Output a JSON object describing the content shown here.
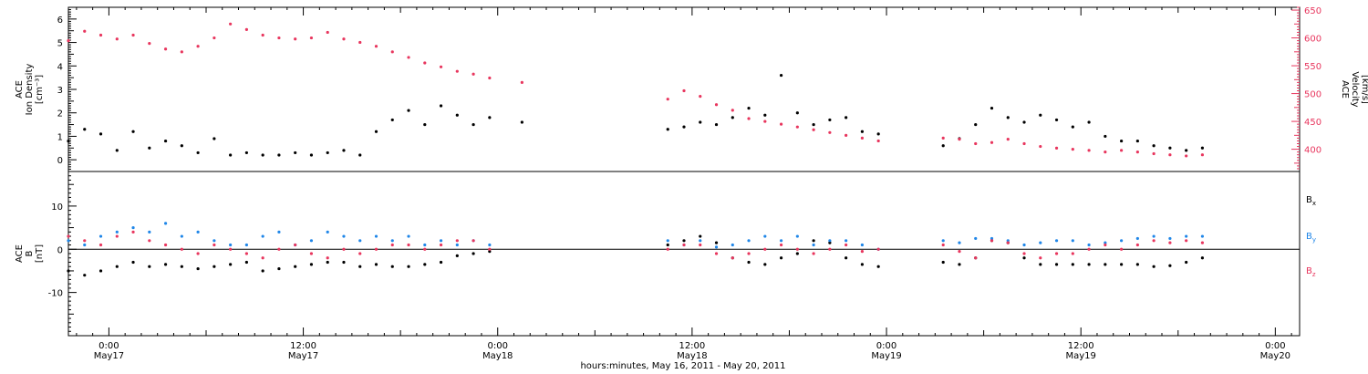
{
  "figure": {
    "xlabel": "hours:minutes, May 16, 2011 - May 20, 2011",
    "x_ticks": [
      {
        "hour": 24,
        "time": "0:00",
        "date": "May17"
      },
      {
        "hour": 36,
        "time": "12:00",
        "date": "May17"
      },
      {
        "hour": 48,
        "time": "0:00",
        "date": "May18"
      },
      {
        "hour": 60,
        "time": "12:00",
        "date": "May18"
      },
      {
        "hour": 72,
        "time": "0:00",
        "date": "May19"
      },
      {
        "hour": 84,
        "time": "12:00",
        "date": "May19"
      },
      {
        "hour": 96,
        "time": "0:00",
        "date": "May20"
      }
    ],
    "colors": {
      "black": "#000000",
      "pink": "#e8365e",
      "blue": "#1f86e8",
      "axis_right": "#e8365e"
    }
  },
  "chart_data": [
    {
      "type": "scatter",
      "xlim_hours": [
        21.5,
        97.5
      ],
      "left_axis": {
        "title_lines": [
          "ACE",
          "Ion Density",
          "[cm⁻³]"
        ],
        "ylim": [
          -0.5,
          6.5
        ],
        "ticks": [
          0,
          1,
          2,
          3,
          4,
          5,
          6
        ]
      },
      "right_axis": {
        "title_lines": [
          "ACE",
          "Velocity",
          "[km/s]"
        ],
        "ylim": [
          360,
          655
        ],
        "ticks": [
          400,
          450,
          500,
          550,
          600,
          650
        ]
      },
      "series": [
        {
          "axis": "left",
          "color": "#000000",
          "x": [
            21.5,
            22.5,
            23.5,
            24.5,
            25.5,
            26.5,
            27.5,
            28.5,
            29.5,
            30.5,
            31.5,
            32.5,
            33.5,
            34.5,
            35.5,
            36.5,
            37.5,
            38.5,
            39.5,
            40.5,
            41.5,
            42.5,
            43.5,
            44.5,
            45.5,
            46.5,
            47.5,
            49.5,
            58.5,
            59.5,
            60.5,
            61.5,
            62.5,
            63.5,
            64.5,
            65.5,
            66.5,
            67.5,
            68.5,
            69.5,
            70.5,
            71.5,
            75.5,
            76.5,
            77.5,
            78.5,
            79.5,
            80.5,
            81.5,
            82.5,
            83.5,
            84.5,
            85.5,
            86.5,
            87.5,
            88.5,
            89.5,
            90.5,
            91.5
          ],
          "y": [
            0.8,
            1.3,
            1.1,
            0.4,
            1.2,
            0.5,
            0.8,
            0.6,
            0.3,
            0.9,
            0.2,
            0.3,
            0.2,
            0.2,
            0.3,
            0.2,
            0.3,
            0.4,
            0.2,
            1.2,
            1.7,
            2.1,
            1.5,
            2.3,
            1.9,
            1.5,
            1.8,
            1.6,
            1.3,
            1.4,
            1.6,
            1.5,
            1.8,
            2.2,
            1.9,
            3.6,
            2.0,
            1.5,
            1.7,
            1.8,
            1.2,
            1.1,
            0.6,
            0.9,
            1.5,
            2.2,
            1.8,
            1.6,
            1.9,
            1.7,
            1.4,
            1.6,
            1.0,
            0.8,
            0.8,
            0.6,
            0.5,
            0.4,
            0.5
          ]
        },
        {
          "axis": "right",
          "color": "#e8365e",
          "x": [
            21.5,
            22.5,
            23.5,
            24.5,
            25.5,
            26.5,
            27.5,
            28.5,
            29.5,
            30.5,
            31.5,
            32.5,
            33.5,
            34.5,
            35.5,
            36.5,
            37.5,
            38.5,
            39.5,
            40.5,
            41.5,
            42.5,
            43.5,
            44.5,
            45.5,
            46.5,
            47.5,
            49.5,
            58.5,
            59.5,
            60.5,
            61.5,
            62.5,
            63.5,
            64.5,
            65.5,
            66.5,
            67.5,
            68.5,
            69.5,
            70.5,
            71.5,
            75.5,
            76.5,
            77.5,
            78.5,
            79.5,
            80.5,
            81.5,
            82.5,
            83.5,
            84.5,
            85.5,
            86.5,
            87.5,
            88.5,
            89.5,
            90.5,
            91.5
          ],
          "y": [
            595,
            612,
            605,
            598,
            605,
            590,
            580,
            575,
            585,
            600,
            625,
            615,
            605,
            600,
            598,
            600,
            610,
            598,
            592,
            585,
            575,
            565,
            555,
            548,
            540,
            535,
            528,
            520,
            490,
            505,
            495,
            480,
            470,
            455,
            450,
            445,
            440,
            435,
            430,
            425,
            420,
            415,
            420,
            418,
            410,
            412,
            418,
            410,
            405,
            402,
            400,
            398,
            395,
            398,
            395,
            392,
            390,
            388,
            390
          ]
        }
      ]
    },
    {
      "type": "scatter",
      "xlim_hours": [
        21.5,
        97.5
      ],
      "axis": {
        "title_lines": [
          "ACE",
          "B",
          "[nT]"
        ],
        "ylim": [
          -20,
          18
        ],
        "ticks": [
          -10,
          0,
          10
        ]
      },
      "legend_labels": {
        "bx": "Bx",
        "by": "By",
        "bz": "Bz"
      },
      "series": [
        {
          "color": "#000000",
          "x": [
            21.5,
            22.5,
            23.5,
            24.5,
            25.5,
            26.5,
            27.5,
            28.5,
            29.5,
            30.5,
            31.5,
            32.5,
            33.5,
            34.5,
            35.5,
            36.5,
            37.5,
            38.5,
            39.5,
            40.5,
            41.5,
            42.5,
            43.5,
            44.5,
            45.5,
            46.5,
            47.5,
            58.5,
            59.5,
            60.5,
            61.5,
            62.5,
            63.5,
            64.5,
            65.5,
            66.5,
            67.5,
            68.5,
            69.5,
            70.5,
            71.5,
            75.5,
            76.5,
            77.5,
            78.5,
            79.5,
            80.5,
            81.5,
            82.5,
            83.5,
            84.5,
            85.5,
            86.5,
            87.5,
            88.5,
            89.5,
            90.5,
            91.5
          ],
          "y": [
            -5,
            -6,
            -5,
            -4,
            -3,
            -4,
            -3.5,
            -4,
            -4.5,
            -4,
            -3.5,
            -3,
            -5,
            -4.5,
            -4,
            -3.5,
            -3,
            -3,
            -4,
            -3.5,
            -4,
            -4,
            -3.5,
            -3,
            -1.5,
            -1,
            -0.5,
            1,
            2,
            3,
            1.5,
            -2,
            -3,
            -3.5,
            -2,
            -1,
            2,
            1.5,
            -2,
            -3.5,
            -4,
            -3,
            -3.5,
            -2,
            2,
            1.5,
            -2,
            -3.5,
            -3.5,
            -3.5,
            -3.5,
            -3.5,
            -3.5,
            -3.5,
            -4,
            -3.8,
            -3,
            -2
          ]
        },
        {
          "color": "#1f86e8",
          "x": [
            21.5,
            22.5,
            23.5,
            24.5,
            25.5,
            26.5,
            27.5,
            28.5,
            29.5,
            30.5,
            31.5,
            32.5,
            33.5,
            34.5,
            35.5,
            36.5,
            37.5,
            38.5,
            39.5,
            40.5,
            41.5,
            42.5,
            43.5,
            44.5,
            45.5,
            46.5,
            47.5,
            58.5,
            59.5,
            60.5,
            61.5,
            62.5,
            63.5,
            64.5,
            65.5,
            66.5,
            67.5,
            68.5,
            69.5,
            70.5,
            71.5,
            75.5,
            76.5,
            77.5,
            78.5,
            79.5,
            80.5,
            81.5,
            82.5,
            83.5,
            84.5,
            85.5,
            86.5,
            87.5,
            88.5,
            89.5,
            90.5,
            91.5
          ],
          "y": [
            2,
            1,
            3,
            4,
            5,
            4,
            6,
            3,
            4,
            2,
            1,
            1,
            3,
            4,
            1,
            2,
            4,
            3,
            2,
            3,
            2,
            3,
            1,
            2,
            1,
            2,
            1,
            2,
            1,
            2,
            0.5,
            1,
            2,
            3,
            2,
            3,
            1,
            2,
            2,
            1,
            0,
            2,
            1.5,
            2.5,
            2.5,
            2,
            1,
            1.5,
            2,
            2,
            1,
            1.5,
            2,
            2.5,
            3,
            2.5,
            3,
            3
          ]
        },
        {
          "color": "#e8365e",
          "x": [
            21.5,
            22.5,
            23.5,
            24.5,
            25.5,
            26.5,
            27.5,
            28.5,
            29.5,
            30.5,
            31.5,
            32.5,
            33.5,
            34.5,
            35.5,
            36.5,
            37.5,
            38.5,
            39.5,
            40.5,
            41.5,
            42.5,
            43.5,
            44.5,
            45.5,
            46.5,
            47.5,
            58.5,
            59.5,
            60.5,
            61.5,
            62.5,
            63.5,
            64.5,
            65.5,
            66.5,
            67.5,
            68.5,
            69.5,
            70.5,
            71.5,
            75.5,
            76.5,
            77.5,
            78.5,
            79.5,
            80.5,
            81.5,
            82.5,
            83.5,
            84.5,
            85.5,
            86.5,
            87.5,
            88.5,
            89.5,
            90.5,
            91.5
          ],
          "y": [
            3,
            2,
            1,
            3,
            4,
            2,
            1,
            0,
            -1,
            1,
            0,
            -1,
            -2,
            0,
            1,
            -1,
            -2,
            0,
            -1,
            0,
            1,
            1,
            0,
            1,
            2,
            2,
            0,
            0,
            1,
            1,
            -1,
            -2,
            -1,
            0,
            1,
            0,
            -1,
            0,
            1,
            -0.5,
            0,
            1,
            -0.5,
            -2,
            2,
            1.5,
            -1,
            -2,
            -1,
            -1,
            0,
            1,
            0,
            1,
            2,
            1.5,
            2,
            1.5
          ]
        }
      ]
    }
  ]
}
